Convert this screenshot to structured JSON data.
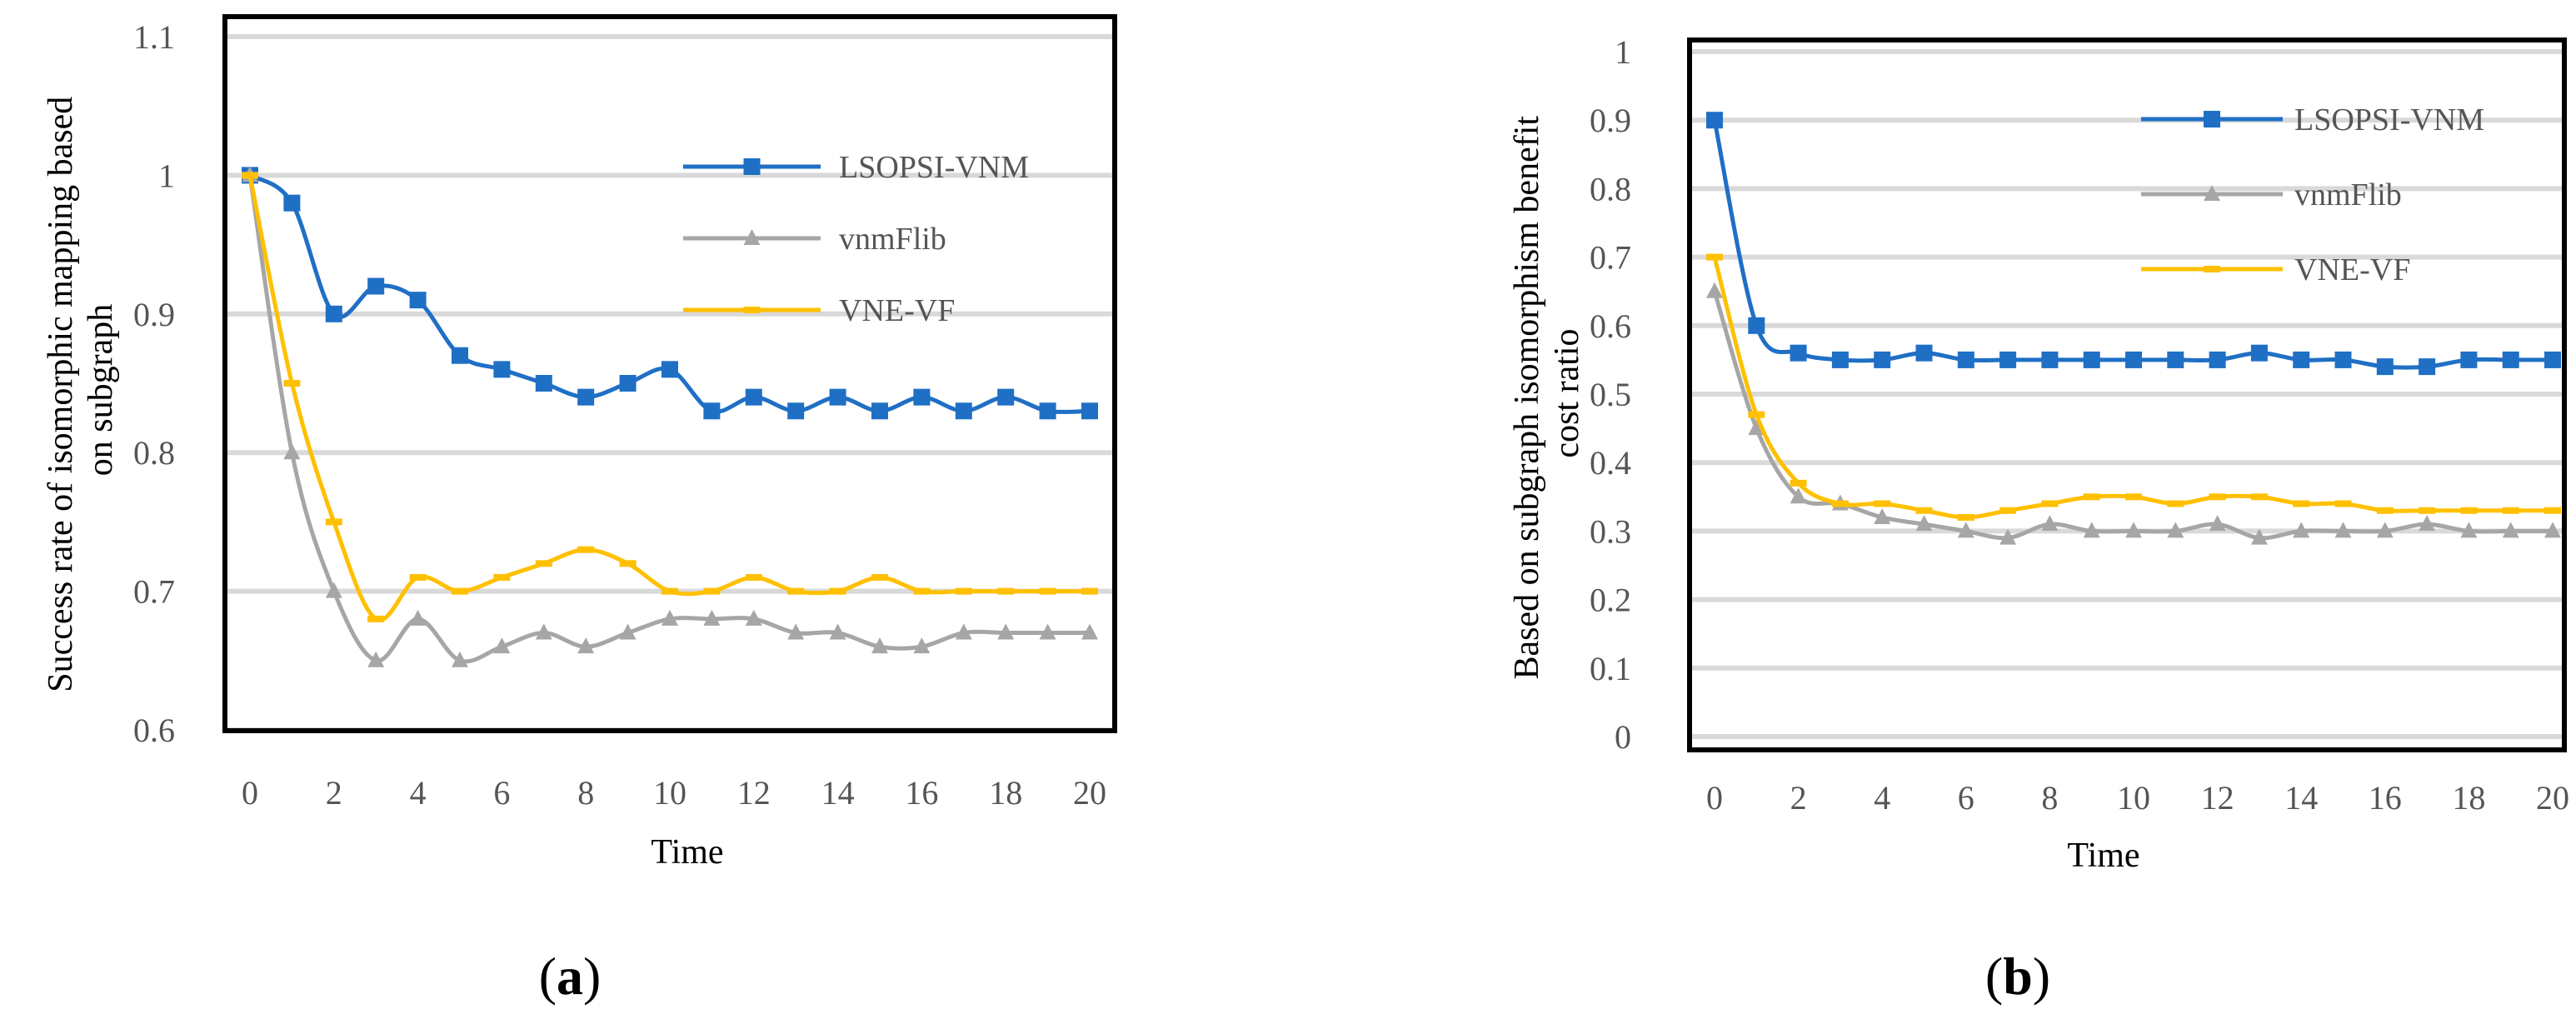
{
  "colors": {
    "LSOPSI-VNM": "#1f6fc5",
    "vnmFlib": "#a6a6a6",
    "VNE-VF": "#ffc000",
    "grid": "#d9d9d9",
    "frame": "#000000"
  },
  "chart_data": [
    {
      "id": "a",
      "type": "line",
      "panel_label": {
        "open": "(",
        "letter": "a",
        "close": ")"
      },
      "ylabel_lines": [
        "Success rate of isomorphic mapping based",
        "on subgraph"
      ],
      "xlabel": "Time",
      "ylim": [
        0.6,
        1.1
      ],
      "yticks": [
        0.6,
        0.7,
        0.8,
        0.9,
        1,
        1.1
      ],
      "ytick_labels": [
        "0.6",
        "0.7",
        "0.8",
        "0.9",
        "1",
        "1.1"
      ],
      "xlim": [
        0,
        20
      ],
      "xticks": [
        0,
        2,
        4,
        6,
        8,
        10,
        12,
        14,
        16,
        18,
        20
      ],
      "xtick_labels": [
        "0",
        "2",
        "4",
        "6",
        "8",
        "10",
        "12",
        "14",
        "16",
        "18",
        "20"
      ],
      "grid": true,
      "legend_position": "top-right",
      "x": [
        0,
        1,
        2,
        3,
        4,
        5,
        6,
        7,
        8,
        9,
        10,
        11,
        12,
        13,
        14,
        15,
        16,
        17,
        18,
        19,
        20
      ],
      "series": [
        {
          "name": "LSOPSI-VNM",
          "marker": "square",
          "values": [
            1.0,
            0.98,
            0.9,
            0.92,
            0.91,
            0.87,
            0.86,
            0.85,
            0.84,
            0.85,
            0.86,
            0.83,
            0.84,
            0.83,
            0.84,
            0.83,
            0.84,
            0.83,
            0.84,
            0.83,
            0.83
          ]
        },
        {
          "name": "vnmFlib",
          "marker": "triangle",
          "values": [
            1.0,
            0.8,
            0.7,
            0.65,
            0.68,
            0.65,
            0.66,
            0.67,
            0.66,
            0.67,
            0.68,
            0.68,
            0.68,
            0.67,
            0.67,
            0.66,
            0.66,
            0.67,
            0.67,
            0.67,
            0.67
          ]
        },
        {
          "name": "VNE-VF",
          "marker": "dash",
          "values": [
            1.0,
            0.85,
            0.75,
            0.68,
            0.71,
            0.7,
            0.71,
            0.72,
            0.73,
            0.72,
            0.7,
            0.7,
            0.71,
            0.7,
            0.7,
            0.71,
            0.7,
            0.7,
            0.7,
            0.7,
            0.7
          ]
        }
      ]
    },
    {
      "id": "b",
      "type": "line",
      "panel_label": {
        "open": "(",
        "letter": "b",
        "close": ")"
      },
      "ylabel_lines": [
        "Based on subgraph isomorphism benefit",
        "cost ratio"
      ],
      "xlabel": "Time",
      "ylim": [
        0,
        1
      ],
      "yticks": [
        0,
        0.1,
        0.2,
        0.3,
        0.4,
        0.5,
        0.6,
        0.7,
        0.8,
        0.9,
        1
      ],
      "ytick_labels": [
        "0",
        "0.1",
        "0.2",
        "0.3",
        "0.4",
        "0.5",
        "0.6",
        "0.7",
        "0.8",
        "0.9",
        "1"
      ],
      "xlim": [
        0,
        20
      ],
      "xticks": [
        0,
        2,
        4,
        6,
        8,
        10,
        12,
        14,
        16,
        18,
        20
      ],
      "xtick_labels": [
        "0",
        "2",
        "4",
        "6",
        "8",
        "10",
        "12",
        "14",
        "16",
        "18",
        "20"
      ],
      "grid": true,
      "legend_position": "top-right",
      "x": [
        0,
        1,
        2,
        3,
        4,
        5,
        6,
        7,
        8,
        9,
        10,
        11,
        12,
        13,
        14,
        15,
        16,
        17,
        18,
        19,
        20
      ],
      "series": [
        {
          "name": "LSOPSI-VNM",
          "marker": "square",
          "values": [
            0.9,
            0.6,
            0.56,
            0.55,
            0.55,
            0.56,
            0.55,
            0.55,
            0.55,
            0.55,
            0.55,
            0.55,
            0.55,
            0.56,
            0.55,
            0.55,
            0.54,
            0.54,
            0.55,
            0.55,
            0.55
          ]
        },
        {
          "name": "vnmFlib",
          "marker": "triangle",
          "values": [
            0.65,
            0.45,
            0.35,
            0.34,
            0.32,
            0.31,
            0.3,
            0.29,
            0.31,
            0.3,
            0.3,
            0.3,
            0.31,
            0.29,
            0.3,
            0.3,
            0.3,
            0.31,
            0.3,
            0.3,
            0.3
          ]
        },
        {
          "name": "VNE-VF",
          "marker": "dash",
          "values": [
            0.7,
            0.47,
            0.37,
            0.34,
            0.34,
            0.33,
            0.32,
            0.33,
            0.34,
            0.35,
            0.35,
            0.34,
            0.35,
            0.35,
            0.34,
            0.34,
            0.33,
            0.33,
            0.33,
            0.33,
            0.33
          ]
        }
      ]
    }
  ]
}
